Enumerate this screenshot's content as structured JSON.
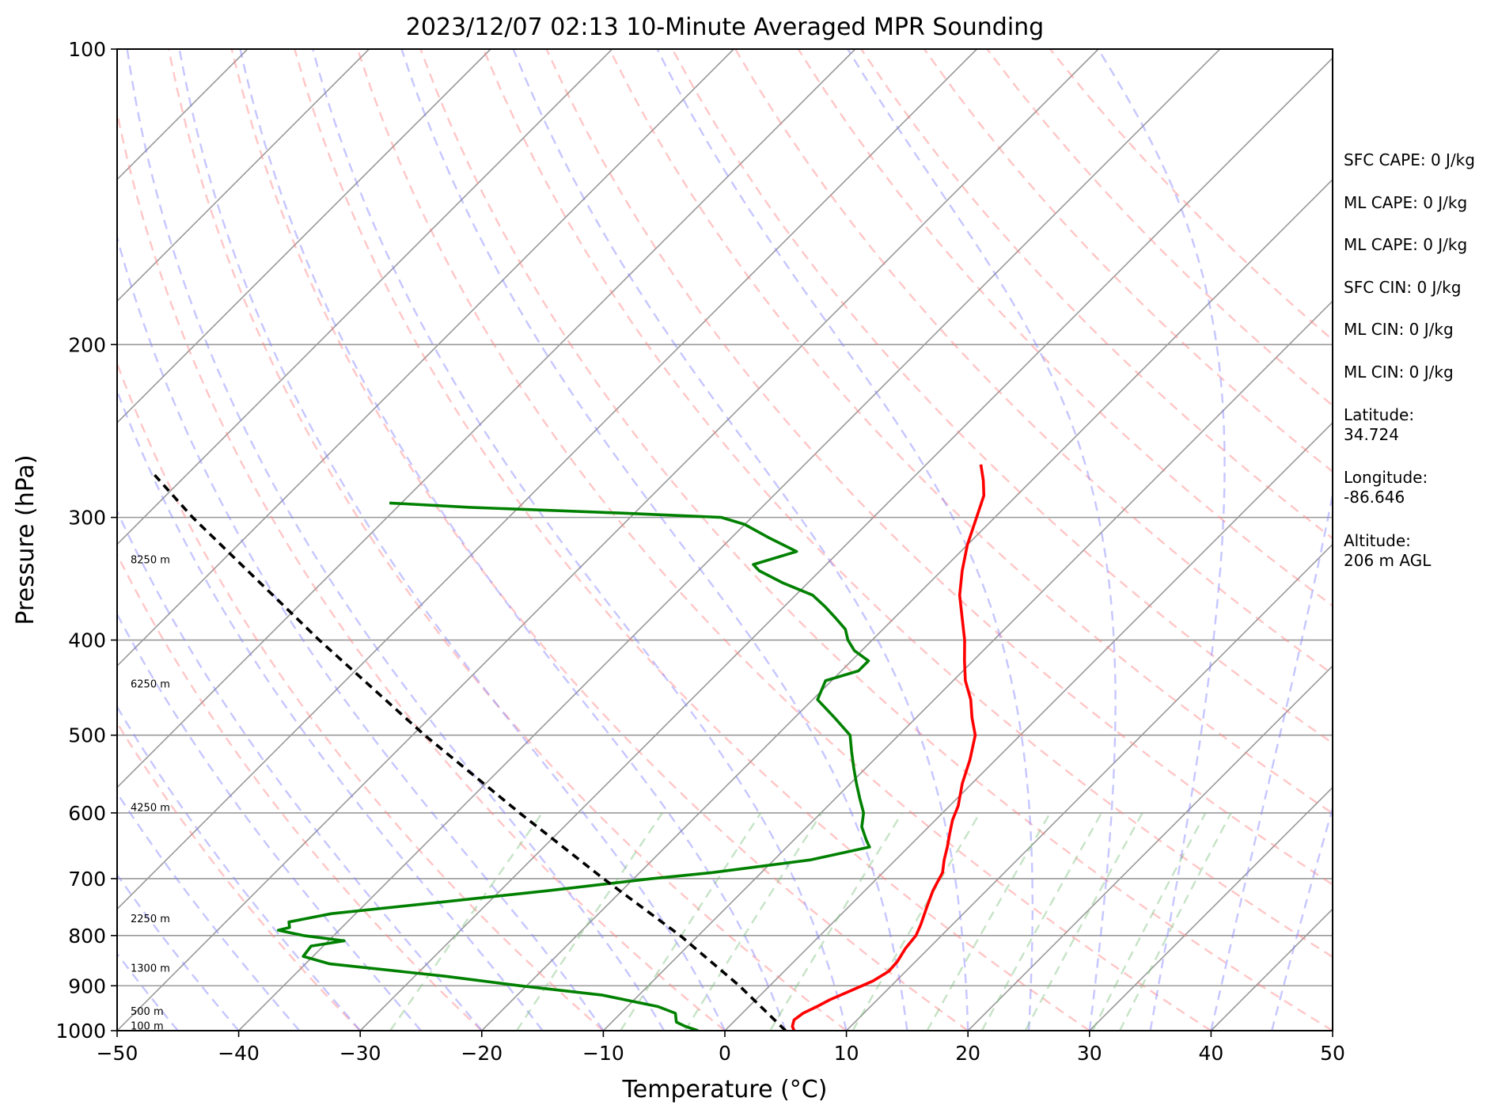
{
  "chart_data": {
    "type": "line",
    "title": "2023/12/07 02:13 10-Minute Averaged MPR Sounding",
    "xlabel": "Temperature (°C)",
    "ylabel": "Pressure (hPa)",
    "xlim": [
      -50,
      50
    ],
    "ylim": [
      1000,
      100
    ],
    "y_scale": "log",
    "skew": true,
    "x_ticks": [
      -50,
      -40,
      -30,
      -20,
      -10,
      0,
      10,
      20,
      30,
      40,
      50
    ],
    "x_tick_labels": [
      "−50",
      "−40",
      "−30",
      "−20",
      "−10",
      "0",
      "10",
      "20",
      "30",
      "40",
      "50"
    ],
    "y_ticks": [
      1000,
      900,
      800,
      700,
      600,
      500,
      400,
      300,
      200,
      100
    ],
    "y_tick_labels": [
      "1000",
      "900",
      "800",
      "700",
      "600",
      "500",
      "400",
      "300",
      "200",
      "100"
    ],
    "grid": true,
    "colors": {
      "temperature": "#ff0000",
      "dewpoint": "#008000",
      "parcel": "#000000",
      "dry_adiabats": "#ff8080",
      "moist_adiabats": "#8080ff",
      "mixing_ratio": "#80c080",
      "isotherms": "#999999"
    },
    "series": [
      {
        "role": "temperature",
        "points": [
          [
            1000,
            5.7
          ],
          [
            990,
            5.2
          ],
          [
            975,
            4.8
          ],
          [
            960,
            5.0
          ],
          [
            945,
            5.6
          ],
          [
            930,
            6.1
          ],
          [
            910,
            7.1
          ],
          [
            890,
            8.1
          ],
          [
            870,
            8.6
          ],
          [
            850,
            8.5
          ],
          [
            825,
            8.1
          ],
          [
            800,
            7.9
          ],
          [
            780,
            7.4
          ],
          [
            750,
            6.5
          ],
          [
            720,
            5.6
          ],
          [
            690,
            4.9
          ],
          [
            670,
            4.0
          ],
          [
            650,
            3.2
          ],
          [
            630,
            2.3
          ],
          [
            610,
            1.4
          ],
          [
            590,
            0.7
          ],
          [
            560,
            -0.8
          ],
          [
            530,
            -2.1
          ],
          [
            500,
            -3.7
          ],
          [
            480,
            -5.4
          ],
          [
            460,
            -7.0
          ],
          [
            440,
            -9.0
          ],
          [
            420,
            -10.7
          ],
          [
            400,
            -12.4
          ],
          [
            380,
            -14.4
          ],
          [
            360,
            -16.5
          ],
          [
            340,
            -18.3
          ],
          [
            320,
            -20.0
          ],
          [
            300,
            -21.5
          ],
          [
            285,
            -22.7
          ],
          [
            275,
            -24.0
          ],
          [
            265,
            -25.5
          ]
        ]
      },
      {
        "role": "dewpoint",
        "points": [
          [
            1000,
            -2.2
          ],
          [
            990,
            -3.6
          ],
          [
            980,
            -4.7
          ],
          [
            960,
            -5.5
          ],
          [
            945,
            -7.5
          ],
          [
            920,
            -13.0
          ],
          [
            900,
            -20.5
          ],
          [
            880,
            -27.5
          ],
          [
            855,
            -38.0
          ],
          [
            840,
            -40.8
          ],
          [
            820,
            -41.0
          ],
          [
            810,
            -38.7
          ],
          [
            800,
            -42.5
          ],
          [
            790,
            -45.0
          ],
          [
            785,
            -44.3
          ],
          [
            775,
            -44.8
          ],
          [
            760,
            -42.0
          ],
          [
            740,
            -34.0
          ],
          [
            720,
            -26.0
          ],
          [
            700,
            -18.5
          ],
          [
            690,
            -14.0
          ],
          [
            670,
            -7.0
          ],
          [
            650,
            -3.2
          ],
          [
            640,
            -4.0
          ],
          [
            620,
            -5.5
          ],
          [
            600,
            -6.5
          ],
          [
            580,
            -8.0
          ],
          [
            560,
            -9.5
          ],
          [
            540,
            -11.0
          ],
          [
            520,
            -12.5
          ],
          [
            500,
            -14.0
          ],
          [
            480,
            -16.7
          ],
          [
            460,
            -19.6
          ],
          [
            440,
            -20.5
          ],
          [
            430,
            -18.6
          ],
          [
            420,
            -18.6
          ],
          [
            410,
            -20.6
          ],
          [
            400,
            -22.0
          ],
          [
            390,
            -23.1
          ],
          [
            380,
            -24.8
          ],
          [
            370,
            -26.6
          ],
          [
            360,
            -28.6
          ],
          [
            350,
            -32.0
          ],
          [
            340,
            -35.0
          ],
          [
            335,
            -36.0
          ],
          [
            325,
            -33.5
          ],
          [
            315,
            -36.8
          ],
          [
            305,
            -40.0
          ],
          [
            300,
            -42.5
          ],
          [
            297,
            -51.0
          ],
          [
            293,
            -64.0
          ],
          [
            290,
            -71.0
          ]
        ]
      },
      {
        "role": "parcel",
        "points": [
          [
            1000,
            5.0
          ],
          [
            900,
            -2.5
          ],
          [
            800,
            -11.5
          ],
          [
            700,
            -22.5
          ],
          [
            600,
            -34.8
          ],
          [
            500,
            -49.0
          ],
          [
            400,
            -65.5
          ],
          [
            300,
            -86.0
          ],
          [
            270,
            -93.0
          ]
        ]
      }
    ],
    "isotherm_values": [
      -120,
      -110,
      -100,
      -90,
      -80,
      -70,
      -60,
      -50,
      -40,
      -30,
      -20,
      -10,
      0,
      10,
      20,
      30,
      40,
      50
    ],
    "dry_adiabat_thetas_c": [
      -30,
      -20,
      -10,
      0,
      10,
      20,
      30,
      40,
      50,
      60,
      70,
      80,
      90,
      100,
      110,
      120,
      130,
      140,
      150
    ],
    "moist_adiabat_start_c": [
      -45,
      -40,
      -35,
      -30,
      -25,
      -20,
      -15,
      -10,
      -5,
      0,
      5,
      10,
      15,
      20,
      25,
      30,
      35,
      40,
      45,
      50
    ],
    "mixing_ratio_values": [
      0.4,
      1,
      2,
      3,
      5,
      8,
      12,
      16,
      20,
      28,
      32
    ],
    "height_labels": [
      {
        "text": "100 m",
        "p": 988
      },
      {
        "text": "500 m",
        "p": 955
      },
      {
        "text": "1300 m",
        "p": 863
      },
      {
        "text": "2250 m",
        "p": 768
      },
      {
        "text": "4250 m",
        "p": 592
      },
      {
        "text": "6250 m",
        "p": 443
      },
      {
        "text": "8250 m",
        "p": 331
      }
    ]
  },
  "indices": [
    {
      "text": "SFC CAPE: 0 J/kg"
    },
    {
      "text": "ML CAPE: 0 J/kg"
    },
    {
      "text": "ML CAPE: 0 J/kg"
    },
    {
      "text": "SFC CIN: 0 J/kg"
    },
    {
      "text": "ML CIN: 0 J/kg"
    },
    {
      "text": "ML CIN: 0 J/kg"
    },
    {
      "text": "Latitude:\n34.724"
    },
    {
      "text": "Longitude:\n-86.646"
    },
    {
      "text": "Altitude:\n206 m AGL"
    }
  ]
}
